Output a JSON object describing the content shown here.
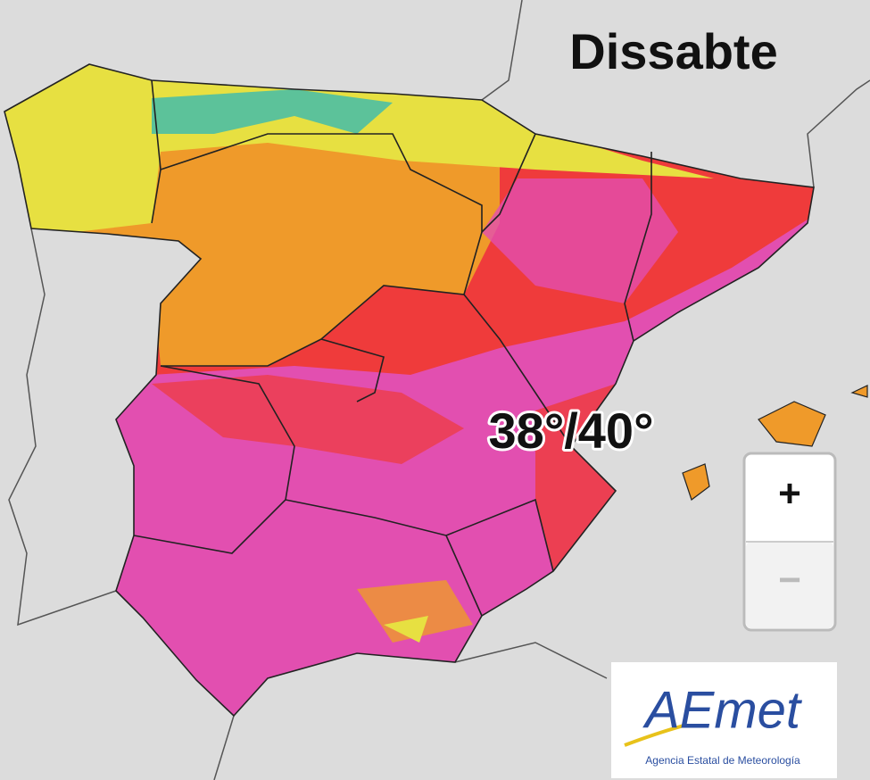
{
  "map": {
    "day_label": "Dissabte",
    "temperature_label": "38°/40°"
  },
  "zoom_controls": {
    "zoom_in": "+",
    "zoom_out": "−"
  },
  "logo": {
    "name": "AEmet",
    "subtitle": "Agencia Estatal de Meteorología"
  }
}
